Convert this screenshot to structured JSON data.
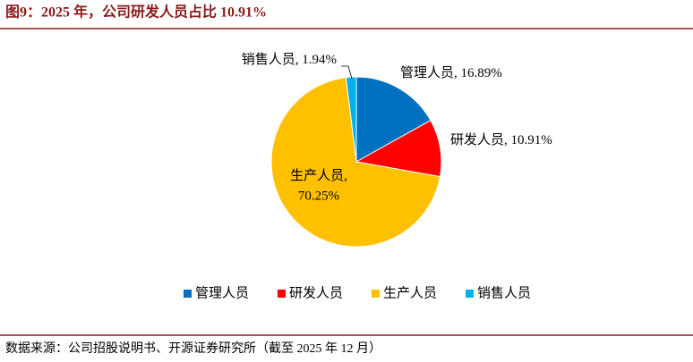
{
  "chart_data": {
    "type": "pie",
    "title": "图9：2025 年，公司研发人员占比 10.91%",
    "categories": [
      "管理人员",
      "研发人员",
      "生产人员",
      "销售人员"
    ],
    "values": [
      16.89,
      10.91,
      70.25,
      1.94
    ],
    "value_labels": [
      "16.89%",
      "10.91%",
      "70.25%",
      "1.94%"
    ],
    "label_separator": ", ",
    "colors": [
      "#0070c0",
      "#ff0000",
      "#ffc000",
      "#00b0f0"
    ],
    "legend": "bottom",
    "source": "数据来源：公司招股说明书、开源证券研究所（截至 2025 年 12 月）"
  }
}
